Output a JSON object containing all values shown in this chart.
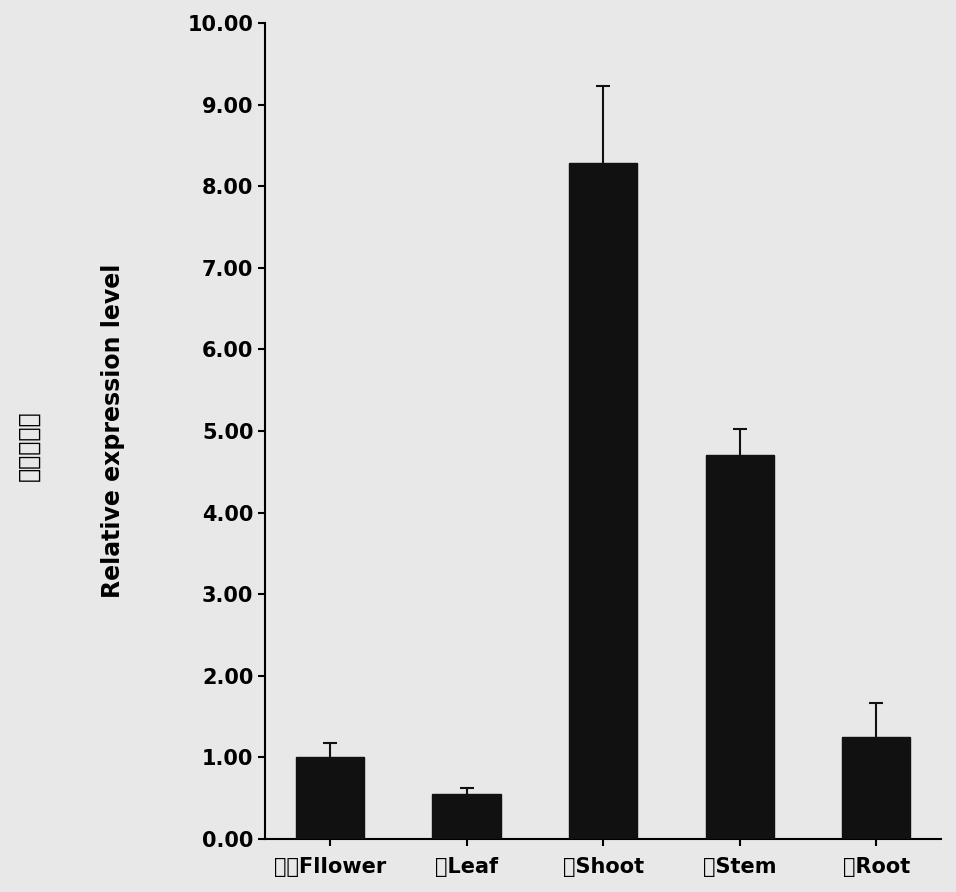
{
  "categories": [
    "花序FlIower",
    "叶Leaf",
    "筎Shoot",
    "茎Stem",
    "根Root"
  ],
  "values": [
    1.0,
    0.55,
    8.28,
    4.7,
    1.25
  ],
  "errors": [
    0.18,
    0.07,
    0.95,
    0.32,
    0.42
  ],
  "bar_color": "#111111",
  "error_color": "#111111",
  "background_color": "#e8e8e8",
  "ylabel_chinese": "相对表达量",
  "ylabel_english": "Relative expression level",
  "ylim": [
    0,
    10.0
  ],
  "yticks": [
    0.0,
    1.0,
    2.0,
    3.0,
    4.0,
    5.0,
    6.0,
    7.0,
    8.0,
    9.0,
    10.0
  ],
  "ytick_labels": [
    "0.00",
    "1.00",
    "2.00",
    "3.00",
    "4.00",
    "5.00",
    "6.00",
    "7.00",
    "8.00",
    "9.00",
    "10.00"
  ],
  "bar_width": 0.5,
  "figsize": [
    9.56,
    8.92
  ],
  "dpi": 100,
  "tick_fontsize": 15,
  "label_fontsize": 17,
  "chinese_fontsize": 17
}
